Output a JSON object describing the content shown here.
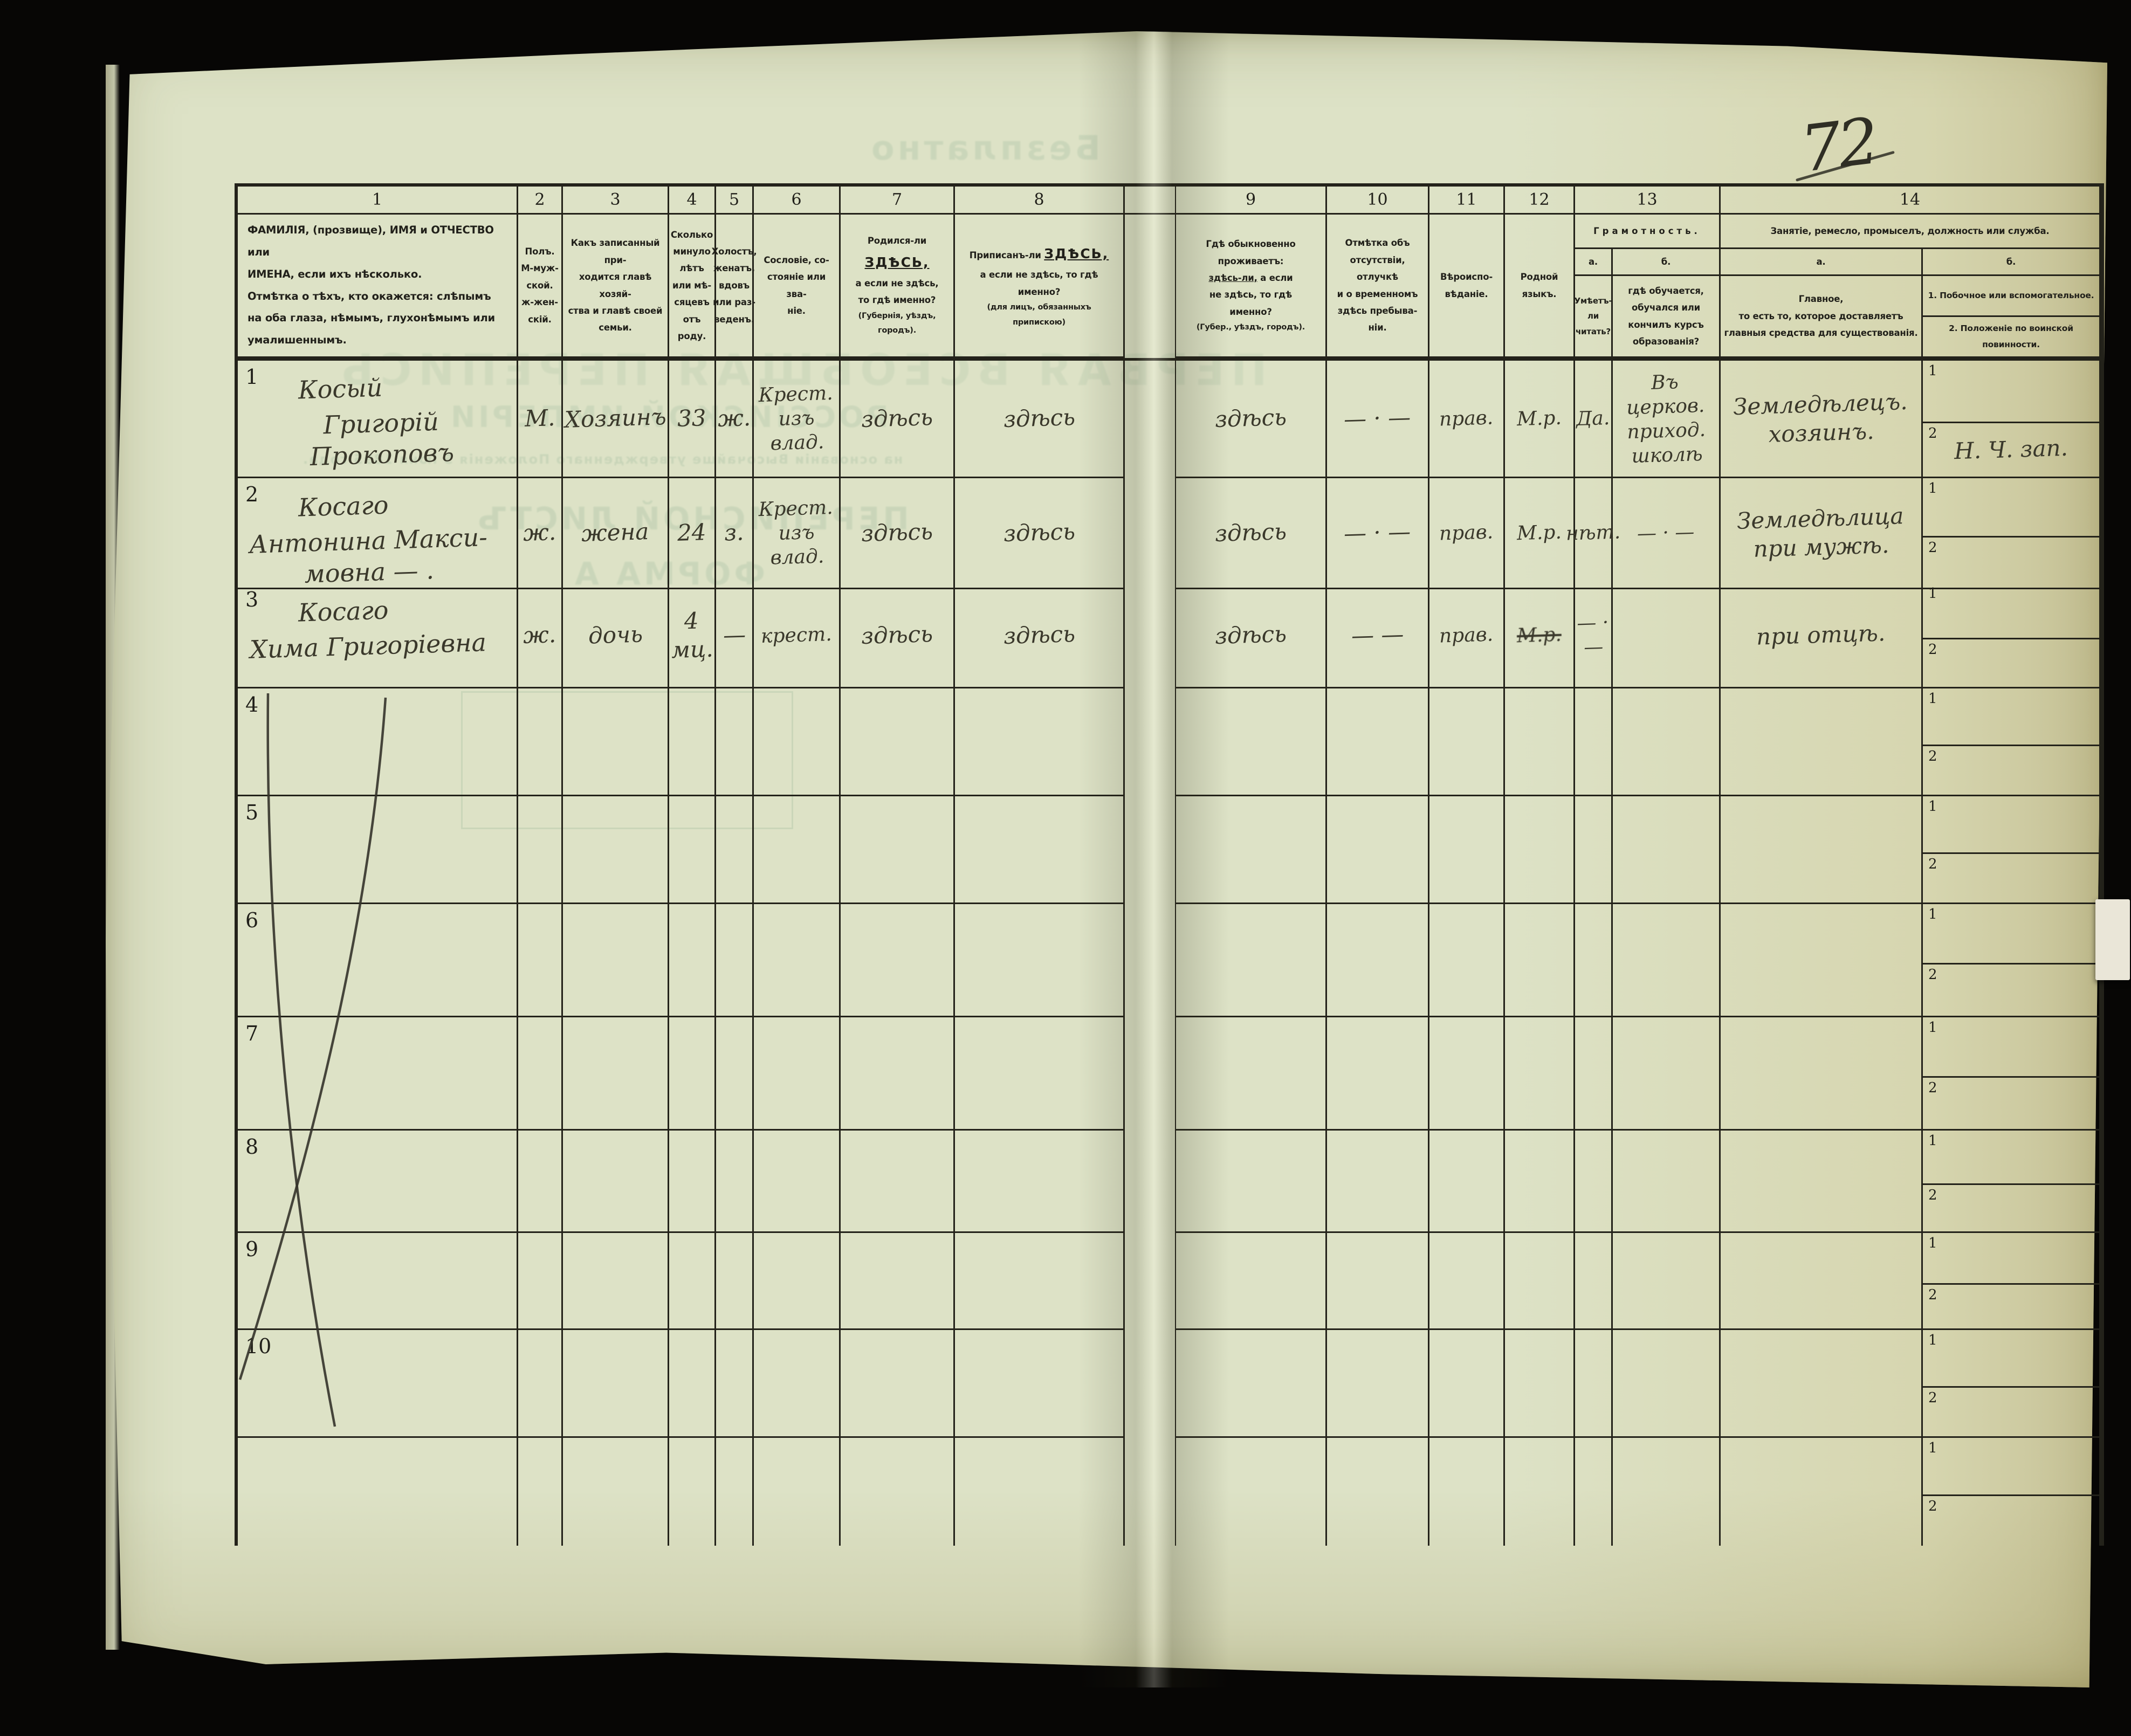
{
  "page": {
    "number": "72"
  },
  "ghosts": {
    "free": "Безплатно",
    "t1": "ПЕРВАЯ ВСЕОБЩАЯ ПЕРЕПИСЬ",
    "t2": "РОССІЙСКОЙ ИМПЕРІИ",
    "t2b": "на основаніи Высочайше утвержденнаго Положенія 5 іюня 1895 года.",
    "t3": "ПЕРЕПИСНОЙ ЛИСТЪ",
    "t4": "ФОРМА А"
  },
  "header": {
    "nums": {
      "n1": "1",
      "n2": "2",
      "n3": "3",
      "n4": "4",
      "n5": "5",
      "n6": "6",
      "n7": "7",
      "n8": "8",
      "n9": "9",
      "n10": "10",
      "n11": "11",
      "n12": "12",
      "n13": "13",
      "n14": "14"
    },
    "c1a": "ФАМИЛІЯ, (прозвище), ИМЯ и ОТЧЕСТВО или\nИМЕНА, если ихъ нѣсколько.",
    "c1b": "Отмѣтка о тѣхъ, кто окажется: слѣпымъ\nна оба глаза, нѣмымъ, глухонѣмымъ или\nумалишеннымъ.",
    "c2": "Полъ.\nМ-муж-\nской.\nж-жен-\nскій.",
    "c3": "Какъ записанный при-\nходится главѣ хозяй-\nства и главѣ своей\nсемьи.",
    "c4": "Сколько\nминуло\nлѣтъ\nили мѣ-\nсяцевъ\nотъ роду.",
    "c5": "Холостъ,\nженатъ,\nвдовъ\nили раз-\nведенъ.",
    "c6": "Сословіе, со-\nстояніе или зва-\nніе.",
    "c7_pre": "Родился-ли",
    "c7_em": "ЗДѢСЬ,",
    "c7_rest": "а если не здѣсь,\nто гдѣ именно?",
    "c7_note": "(Губернія, уѣздъ, городъ).",
    "c8_pre": "Приписанъ-ли",
    "c8_em": "ЗДѢСЬ,",
    "c8_rest": "а если не здѣсь, то гдѣ\nименно?",
    "c8_note": "(для лицъ, обязанныхъ\nприпискою)",
    "c9_pre": "Гдѣ обыкновенно\nпроживаетъ:",
    "c9_em": "здѣсь-ли,",
    "c9_rest": "а если\nне здѣсь, то гдѣ\nименно?",
    "c9_note": "(Губер., уѣздъ, городъ).",
    "c10": "Отмѣтка объ\nотсутствіи, отлучкѣ\nи о временномъ\nздѣсь пребыва-\nніи.",
    "c11": "Вѣроиспо-\nвѣданіе.",
    "c12": "Родной\nязыкъ.",
    "g13": "Грамотность.",
    "g13a": "а.",
    "g13b": "б.",
    "c13a": "Умѣетъ-\nли\nчитать?",
    "c13b": "гдѣ обучается,\nобучался или\nкончилъ курсъ\nобразованія?",
    "g14": "Занятіе, ремесло, промыселъ, должность или служба.",
    "g14a": "а.",
    "g14b": "б.",
    "c14a": "Главное,\nто есть то, которое доставляетъ\nглавныя средства для существованія.",
    "c14b1": "1.  Побочное или вспомогательное.",
    "c14b2": "2.  Положеніе по воинской повинности."
  },
  "table": {
    "sub": {
      "one": "1",
      "two": "2"
    },
    "rows": [
      {
        "num": "1",
        "surname": "Косый",
        "names": "Григорій Прокоповъ",
        "sex": "М.",
        "relation": "Хозяинъ",
        "age": "33",
        "marital": "ж.",
        "estate": "Крест.\nизъ влад.",
        "born": "здѣсь",
        "registered": "здѣсь",
        "resides": "здѣсь",
        "absence": "— · —",
        "faith": "прав.",
        "language": "М.р.",
        "reads": "Да.",
        "school": "Въ церков.\nприход.\nшколѣ",
        "occupation": "Земледѣлецъ.\nхозяинъ.",
        "aux1": "",
        "aux2": "Н. Ч. зап."
      },
      {
        "num": "2",
        "surname": "Косаго",
        "names": "Антонина Макси-\nмовна — .",
        "sex": "ж.",
        "relation": "жена",
        "age": "24",
        "marital": "з.",
        "estate": "Крест.\nизъ влад.",
        "born": "здѣсь",
        "registered": "здѣсь",
        "resides": "здѣсь",
        "absence": "— · —",
        "faith": "прав.",
        "language": "М.р.",
        "reads": "нѣт.",
        "school": "— · —",
        "occupation": "Земледѣлица\nпри мужѣ.",
        "aux1": "",
        "aux2": ""
      },
      {
        "num": "3",
        "surname": "Косаго",
        "names": "Хима Григоріевна",
        "sex": "ж.",
        "relation": "дочь",
        "age": "4 мц.",
        "marital": "—",
        "estate": "крест.",
        "born": "здѣсь",
        "registered": "здѣсь",
        "resides": "здѣсь",
        "absence": "— —",
        "faith": "прав.",
        "language": "М.р.",
        "language_crossed": true,
        "reads": "— · —",
        "school": "",
        "occupation": "при отцѣ.",
        "aux1": "",
        "aux2": ""
      }
    ],
    "empty_rows": [
      "4",
      "5",
      "6",
      "7",
      "8",
      "9",
      "10"
    ]
  },
  "colors": {
    "paper": "#dde2c6",
    "line": "#23221a",
    "ink": "#3a382b",
    "ghost": "#6f9c7e"
  }
}
